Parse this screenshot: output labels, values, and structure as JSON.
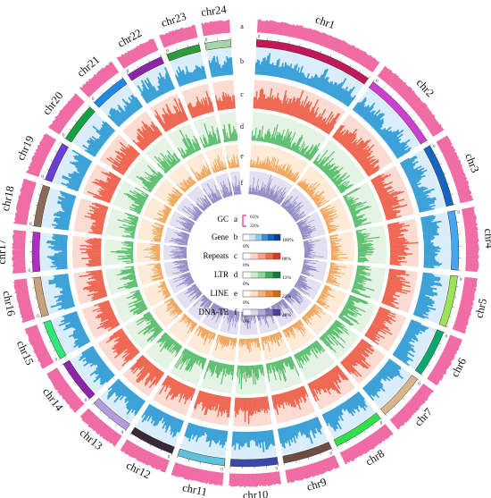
{
  "chromosomes": [
    {
      "name": "chr1",
      "length": 3.0,
      "color": "#c2185b"
    },
    {
      "name": "chr2",
      "length": 2.0,
      "color": "#cc3fd0"
    },
    {
      "name": "chr3",
      "length": 1.6,
      "color": "#1565c0"
    },
    {
      "name": "chr4",
      "length": 1.5,
      "color": "#42a5f5"
    },
    {
      "name": "chr5",
      "length": 1.3,
      "color": "#9ce35a"
    },
    {
      "name": "chr6",
      "length": 1.2,
      "color": "#0aa86c"
    },
    {
      "name": "chr7",
      "length": 1.2,
      "color": "#d6b58a"
    },
    {
      "name": "chr8",
      "length": 1.3,
      "color": "#30e04a"
    },
    {
      "name": "chr9",
      "length": 1.25,
      "color": "#6d4c41"
    },
    {
      "name": "chr10",
      "length": 1.2,
      "color": "#3949ab"
    },
    {
      "name": "chr11",
      "length": 1.2,
      "color": "#5fc2dc"
    },
    {
      "name": "chr12",
      "length": 1.15,
      "color": "#37283a"
    },
    {
      "name": "chr13",
      "length": 1.05,
      "color": "#b39ddb"
    },
    {
      "name": "chr14",
      "length": 1.1,
      "color": "#8e24aa"
    },
    {
      "name": "chr15",
      "length": 1.0,
      "color": "#2ee87a"
    },
    {
      "name": "chr16",
      "length": 1.0,
      "color": "#c8a37a"
    },
    {
      "name": "chr17",
      "length": 1.0,
      "color": "#b12cc4"
    },
    {
      "name": "chr18",
      "length": 1.05,
      "color": "#8b6a5a"
    },
    {
      "name": "chr19",
      "length": 1.0,
      "color": "#6a3fd8"
    },
    {
      "name": "chr20",
      "length": 1.0,
      "color": "#12a040"
    },
    {
      "name": "chr21",
      "length": 0.95,
      "color": "#1e88e5"
    },
    {
      "name": "chr22",
      "length": 0.95,
      "color": "#8e24aa"
    },
    {
      "name": "chr23",
      "length": 0.85,
      "color": "#2e9a3a"
    },
    {
      "name": "chr24",
      "length": 0.65,
      "color": "#a5d6a7"
    }
  ],
  "track_letters": [
    "a",
    "b",
    "c",
    "d",
    "e",
    "f"
  ],
  "tick_label": "0",
  "legend": [
    {
      "key": "gc",
      "name": "GC",
      "letter": "a",
      "max": "63%",
      "min": "33%",
      "colors": [
        "#e0337a"
      ]
    },
    {
      "key": "gene",
      "name": "Gene",
      "letter": "b",
      "min": "0%",
      "max": "100%",
      "colors": [
        "#ffffff",
        "#cfe6f5",
        "#8cc8ec",
        "#3a93cf",
        "#1565c0",
        "#0b3f8a"
      ]
    },
    {
      "key": "repeats",
      "name": "Repeats",
      "letter": "c",
      "min": "0%",
      "max": "88%",
      "colors": [
        "#ffffff",
        "#fbd3c6",
        "#f4a189",
        "#ee6a4f",
        "#d83a2a"
      ]
    },
    {
      "key": "ltr",
      "name": "LTR",
      "letter": "d",
      "min": "0%",
      "max": "13%",
      "colors": [
        "#ffffff",
        "#cdeccf",
        "#8ed39a",
        "#3fae5c",
        "#147a36"
      ]
    },
    {
      "key": "line",
      "name": "LINE",
      "letter": "e",
      "min": "0%",
      "max": "23%",
      "colors": [
        "#ffffff",
        "#fde0c4",
        "#f7b27a",
        "#f08a3a",
        "#d36a12"
      ]
    },
    {
      "key": "dnate",
      "name": "DNA-TE",
      "letter": "f",
      "min": "0%",
      "max": "48%",
      "colors": [
        "#ffffff",
        "#dcd8ee",
        "#b2aad6",
        "#8379bd",
        "#4e3d99"
      ]
    }
  ],
  "tracks": {
    "gc": {
      "color": "#f06aa4"
    },
    "gene": {
      "color": "#3aa0d8",
      "bg": "#d9eefa"
    },
    "repeats": {
      "color": "#ef6650",
      "bg": "#fcdcd2"
    },
    "ltr": {
      "color": "#5bbf6e",
      "bg": "#e4f3e3"
    },
    "line": {
      "color": "#f0a45a",
      "bg": "#fdebd8"
    },
    "dnate": {
      "color": "#8c85c2",
      "bg": "#e3e0f1"
    }
  }
}
